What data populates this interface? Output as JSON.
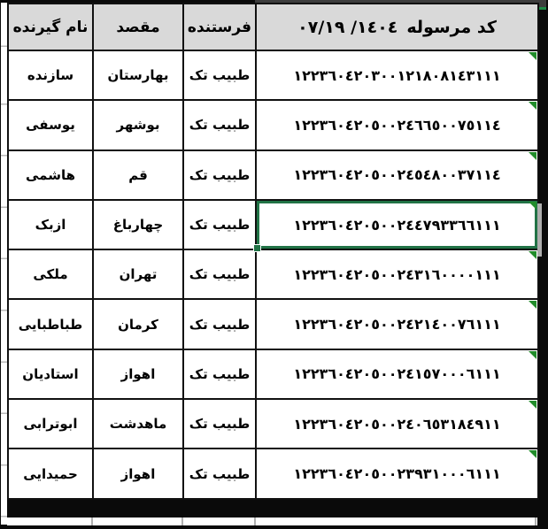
{
  "colors": {
    "header_bg": "#d9d9d9",
    "grid_border": "#111111",
    "selection_green": "#217346",
    "indicator_green": "#218c2a",
    "column_bar": "#3d3d3d",
    "column_bar_underline": "#1f8a46",
    "frame_black": "#0a0a0a"
  },
  "table": {
    "headers": {
      "recipient": "نام گیرنده",
      "destination": "مقصد",
      "sender": "فرستنده",
      "code_label": "کد مرسوله",
      "code_date": "١٤٠٤/ ٠٧/١٩"
    },
    "rows": [
      {
        "recipient": "سازنده",
        "destination": "بهارستان",
        "sender": "طبیب تک",
        "code": "١٢٢٣٦٠٤٢٠٣٠٠١٢١٨٠٨١٤٣١١١"
      },
      {
        "recipient": "یوسفی",
        "destination": "بوشهر",
        "sender": "طبیب تک",
        "code": "١٢٢٣٦٠٤٢٠٥٠٠٢٤٦٦٥٠٠٧٥١١٤"
      },
      {
        "recipient": "هاشمی",
        "destination": "قم",
        "sender": "طبیب تک",
        "code": "١٢٢٣٦٠٤٢٠٥٠٠٢٤٥٤٨٠٠٣٧١١٤"
      },
      {
        "recipient": "ازبک",
        "destination": "چهارباغ",
        "sender": "طبیب تک",
        "code": "١٢٢٣٦٠٤٢٠٥٠٠٢٤٤٧٩٣٣٦٦١١١",
        "selected": true
      },
      {
        "recipient": "ملکی",
        "destination": "تهران",
        "sender": "طبیب تک",
        "code": "١٢٢٣٦٠٤٢٠٥٠٠٢٤٣١٦٠٠٠٠١١١"
      },
      {
        "recipient": "طباطبایی",
        "destination": "کرمان",
        "sender": "طبیب تک",
        "code": "١٢٢٣٦٠٤٢٠٥٠٠٢٤٢١٤٠٠٧٦١١١"
      },
      {
        "recipient": "استادیان",
        "destination": "اهواز",
        "sender": "طبیب تک",
        "code": "١٢٢٣٦٠٤٢٠٥٠٠٢٤١٥٧٠٠٠٦١١١"
      },
      {
        "recipient": "ابوترابی",
        "destination": "ماهدشت",
        "sender": "طبیب تک",
        "code": "١٢٢٣٦٠٤٢٠٥٠٠٢٤٠٦٥٣١٨٤٩١١"
      },
      {
        "recipient": "حمیدایی",
        "destination": "اهواز",
        "sender": "طبیب تک",
        "code": "١٢٢٣٦٠٤٢٠٥٠٠٢٣٩٣١٠٠٠٦١١١"
      }
    ]
  }
}
